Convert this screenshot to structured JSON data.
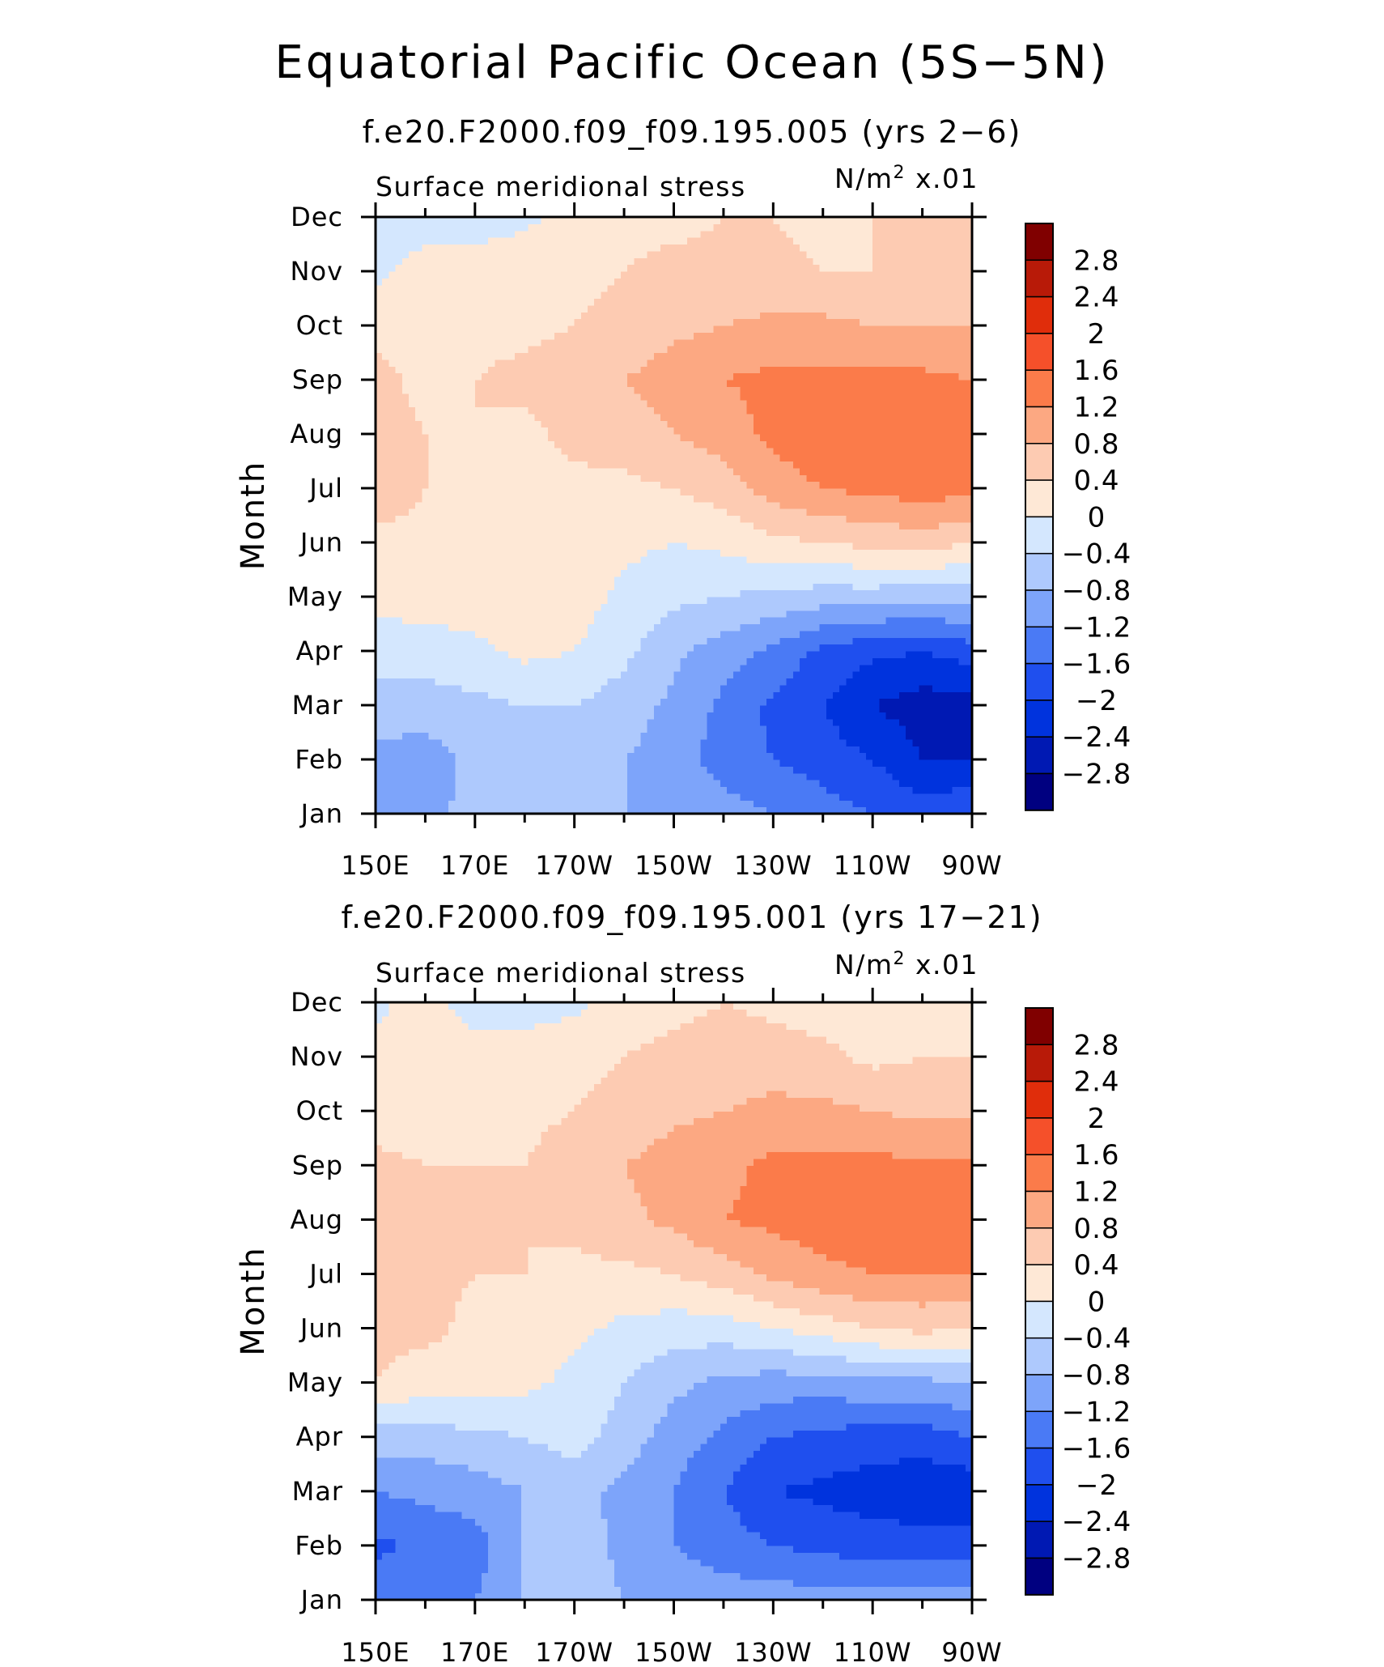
{
  "title": "Equatorial Pacific Ocean (5S−5N)",
  "palette": [
    "#000080",
    "#0019b3",
    "#0033dd",
    "#1f4fee",
    "#4a7af5",
    "#7da4fa",
    "#aec9fd",
    "#d4e7fe",
    "#fee8d6",
    "#fdcbb2",
    "#fca882",
    "#fb7b4a",
    "#f5502a",
    "#e02d0b",
    "#b81a08",
    "#800000"
  ],
  "chart_data": [
    {
      "type": "heatmap",
      "subtitle": "f.e20.F2000.f09_f09.195.005 (yrs 2−6)",
      "variable": "Surface meridional stress",
      "units_prefix": "N/m",
      "units_sup": "2",
      "units_suffix": "x.01",
      "ylabel": "Month",
      "x_ticks": [
        "150E",
        "170E",
        "170W",
        "150W",
        "130W",
        "110W",
        "90W"
      ],
      "y_ticks": [
        "Jan",
        "Feb",
        "Mar",
        "Apr",
        "May",
        "Jun",
        "Jul",
        "Aug",
        "Sep",
        "Oct",
        "Nov",
        "Dec"
      ],
      "colorbar_levels": [
        "2.8",
        "2.4",
        "2",
        "1.6",
        "1.2",
        "0.8",
        "0.4",
        "0",
        "−0.4",
        "−0.8",
        "−1.2",
        "−1.6",
        "−2",
        "−2.4",
        "−2.8"
      ],
      "grid_lon": [
        150,
        160,
        170,
        180,
        190,
        200,
        210,
        220,
        230,
        240,
        250,
        260,
        270
      ],
      "grid_months": [
        "Jan",
        "Feb",
        "Mar",
        "Apr",
        "May",
        "Jun",
        "Jul",
        "Aug",
        "Sep",
        "Oct",
        "Nov",
        "Dec"
      ],
      "values": [
        [
          -1.0,
          -1.0,
          -0.6,
          -0.6,
          -0.6,
          -0.8,
          -0.8,
          -1.0,
          -1.2,
          -1.4,
          -1.6,
          -1.8,
          -1.6
        ],
        [
          -0.9,
          -1.0,
          -0.7,
          -0.6,
          -0.6,
          -0.8,
          -1.0,
          -1.4,
          -1.6,
          -1.8,
          -2.0,
          -2.4,
          -2.4
        ],
        [
          -0.6,
          -0.6,
          -0.5,
          -0.4,
          -0.4,
          -0.6,
          -0.9,
          -1.3,
          -1.7,
          -2.0,
          -2.4,
          -2.6,
          -2.6
        ],
        [
          -0.2,
          -0.2,
          -0.1,
          0.1,
          0.0,
          -0.3,
          -0.7,
          -1.0,
          -1.3,
          -1.7,
          -1.9,
          -2.0,
          -1.8
        ],
        [
          0.1,
          0.2,
          0.2,
          0.3,
          0.2,
          -0.1,
          -0.3,
          -0.4,
          -0.5,
          -0.6,
          -0.6,
          -0.7,
          -0.6
        ],
        [
          0.3,
          0.3,
          0.3,
          0.3,
          0.2,
          0.1,
          0.0,
          0.1,
          0.3,
          0.4,
          0.5,
          0.6,
          0.4
        ],
        [
          0.6,
          0.4,
          0.3,
          0.3,
          0.3,
          0.3,
          0.4,
          0.6,
          1.0,
          1.2,
          1.3,
          1.4,
          1.3
        ],
        [
          0.6,
          0.4,
          0.4,
          0.3,
          0.5,
          0.6,
          0.8,
          1.0,
          1.3,
          1.5,
          1.5,
          1.5,
          1.5
        ],
        [
          0.5,
          0.3,
          0.4,
          0.5,
          0.6,
          0.8,
          1.0,
          1.2,
          1.3,
          1.3,
          1.3,
          1.3,
          1.2
        ],
        [
          0.3,
          0.3,
          0.3,
          0.3,
          0.4,
          0.5,
          0.7,
          0.8,
          0.9,
          0.9,
          0.8,
          0.8,
          0.8
        ],
        [
          -0.1,
          0.2,
          0.2,
          0.3,
          0.3,
          0.4,
          0.5,
          0.5,
          0.5,
          0.4,
          0.4,
          0.5,
          0.5
        ],
        [
          -0.3,
          -0.2,
          -0.2,
          -0.1,
          0.2,
          0.3,
          0.3,
          0.4,
          0.4,
          0.3,
          0.4,
          0.4,
          0.5
        ]
      ]
    },
    {
      "type": "heatmap",
      "subtitle": "f.e20.F2000.f09_f09.195.001 (yrs 17−21)",
      "variable": "Surface meridional stress",
      "units_prefix": "N/m",
      "units_sup": "2",
      "units_suffix": "x.01",
      "ylabel": "Month",
      "x_ticks": [
        "150E",
        "170E",
        "170W",
        "150W",
        "130W",
        "110W",
        "90W"
      ],
      "y_ticks": [
        "Jan",
        "Feb",
        "Mar",
        "Apr",
        "May",
        "Jun",
        "Jul",
        "Aug",
        "Sep",
        "Oct",
        "Nov",
        "Dec"
      ],
      "colorbar_levels": [
        "2.8",
        "2.4",
        "2",
        "1.6",
        "1.2",
        "0.8",
        "0.4",
        "0",
        "−0.4",
        "−0.8",
        "−1.2",
        "−1.6",
        "−2",
        "−2.4",
        "−2.8"
      ],
      "grid_lon": [
        150,
        160,
        170,
        180,
        190,
        200,
        210,
        220,
        230,
        240,
        250,
        260,
        270
      ],
      "grid_months": [
        "Jan",
        "Feb",
        "Mar",
        "Apr",
        "May",
        "Jun",
        "Jul",
        "Aug",
        "Sep",
        "Oct",
        "Nov",
        "Dec"
      ],
      "values": [
        [
          -1.3,
          -1.3,
          -1.2,
          -0.8,
          -0.6,
          -0.8,
          -0.9,
          -1.0,
          -1.0,
          -1.0,
          -1.0,
          -1.0,
          -1.0
        ],
        [
          -1.7,
          -1.5,
          -1.4,
          -0.8,
          -0.6,
          -0.9,
          -1.2,
          -1.4,
          -1.6,
          -1.7,
          -1.8,
          -1.8,
          -1.8
        ],
        [
          -1.2,
          -1.1,
          -1.0,
          -0.8,
          -0.7,
          -0.9,
          -1.2,
          -1.6,
          -2.0,
          -2.1,
          -2.2,
          -2.3,
          -2.3
        ],
        [
          -0.6,
          -0.6,
          -0.5,
          -0.4,
          -0.2,
          -0.6,
          -1.0,
          -1.3,
          -1.6,
          -1.7,
          -1.8,
          -1.8,
          -1.6
        ],
        [
          0.4,
          0.2,
          0.2,
          0.1,
          -0.1,
          -0.4,
          -0.7,
          -0.9,
          -1.0,
          -1.0,
          -0.9,
          -0.9,
          -0.8
        ],
        [
          0.5,
          0.5,
          0.3,
          0.2,
          0.1,
          -0.1,
          -0.2,
          -0.2,
          0.0,
          0.2,
          0.4,
          0.5,
          0.4
        ],
        [
          0.6,
          0.5,
          0.4,
          0.4,
          0.3,
          0.3,
          0.4,
          0.6,
          0.9,
          1.1,
          1.2,
          1.2,
          1.2
        ],
        [
          0.6,
          0.4,
          0.4,
          0.4,
          0.5,
          0.7,
          0.9,
          1.2,
          1.3,
          1.4,
          1.5,
          1.5,
          1.5
        ],
        [
          0.5,
          0.4,
          0.4,
          0.4,
          0.6,
          0.8,
          1.0,
          1.1,
          1.3,
          1.3,
          1.3,
          1.3,
          1.3
        ],
        [
          0.2,
          0.2,
          0.2,
          0.3,
          0.4,
          0.5,
          0.7,
          0.8,
          0.9,
          0.9,
          0.8,
          0.7,
          0.7
        ],
        [
          0.1,
          0.2,
          0.2,
          0.2,
          0.3,
          0.4,
          0.5,
          0.6,
          0.6,
          0.5,
          0.3,
          0.4,
          0.4
        ],
        [
          -0.1,
          0.2,
          -0.2,
          -0.2,
          -0.1,
          0.2,
          0.3,
          0.4,
          0.3,
          0.2,
          0.2,
          0.2,
          0.3
        ]
      ]
    }
  ]
}
